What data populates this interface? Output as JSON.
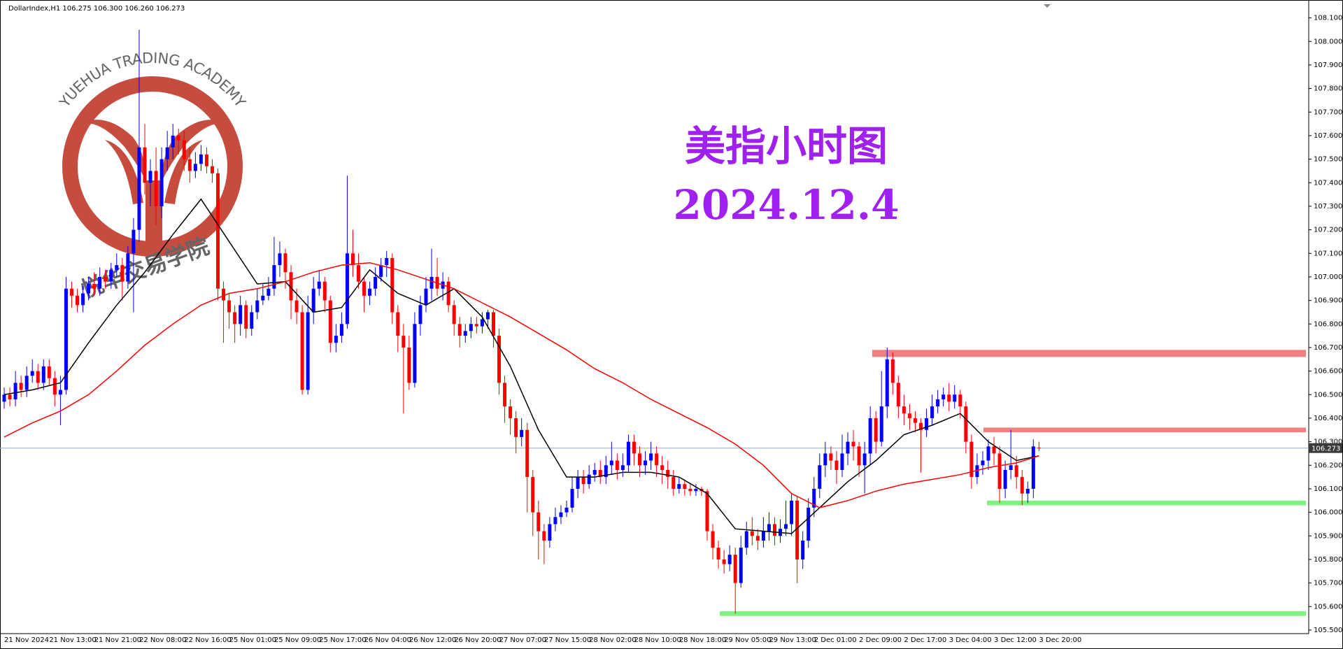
{
  "chart_data": {
    "type": "candlestick",
    "header": "DollarIndex,H1  106.275 106.300 106.260 106.273",
    "title": "美指小时图",
    "subtitle": "2024.12.4",
    "logo_text": "YUEHUA TRADING ACADEMY",
    "logo_text_cn": "悦华交易学院",
    "up_color": "#0000ff",
    "down_color": "#ff0000",
    "ylim": [
      105.485,
      108.176
    ],
    "yticks": [
      {
        "value": 105.5,
        "label": "105.500"
      },
      {
        "value": 105.6,
        "label": "105.600"
      },
      {
        "value": 105.7,
        "label": "105.700"
      },
      {
        "value": 105.8,
        "label": "105.800"
      },
      {
        "value": 105.9,
        "label": "105.900"
      },
      {
        "value": 106.0,
        "label": "106.000"
      },
      {
        "value": 106.1,
        "label": "106.100"
      },
      {
        "value": 106.2,
        "label": "106.200"
      },
      {
        "value": 106.3,
        "label": "106.300"
      },
      {
        "value": 106.4,
        "label": "106.400"
      },
      {
        "value": 106.5,
        "label": "106.500"
      },
      {
        "value": 106.6,
        "label": "106.600"
      },
      {
        "value": 106.7,
        "label": "106.700"
      },
      {
        "value": 106.8,
        "label": "106.800"
      },
      {
        "value": 106.9,
        "label": "106.900"
      },
      {
        "value": 107.0,
        "label": "107.000"
      },
      {
        "value": 107.1,
        "label": "107.100"
      },
      {
        "value": 107.2,
        "label": "107.200"
      },
      {
        "value": 107.3,
        "label": "107.300"
      },
      {
        "value": 107.4,
        "label": "107.400"
      },
      {
        "value": 107.5,
        "label": "107.500"
      },
      {
        "value": 107.6,
        "label": "107.600"
      },
      {
        "value": 107.7,
        "label": "107.700"
      },
      {
        "value": 107.8,
        "label": "107.800"
      },
      {
        "value": 107.9,
        "label": "107.900"
      },
      {
        "value": 108.0,
        "label": "108.000"
      },
      {
        "value": 108.1,
        "label": "108.100"
      }
    ],
    "price_line": 106.273,
    "price_line_color": "#9aa8bd",
    "categories": [
      "21 Nov 2024",
      null,
      null,
      null,
      null,
      null,
      null,
      null,
      "21 Nov 13:00",
      null,
      null,
      null,
      null,
      null,
      null,
      null,
      "21 Nov 21:00",
      null,
      null,
      null,
      null,
      null,
      null,
      null,
      "22 Nov 08:00",
      null,
      null,
      null,
      null,
      null,
      null,
      null,
      "22 Nov 16:00",
      null,
      null,
      null,
      null,
      null,
      null,
      null,
      "25 Nov 01:00",
      null,
      null,
      null,
      null,
      null,
      null,
      null,
      "25 Nov 09:00",
      null,
      null,
      null,
      null,
      null,
      null,
      null,
      "25 Nov 17:00",
      null,
      null,
      null,
      null,
      null,
      null,
      null,
      "26 Nov 04:00",
      null,
      null,
      null,
      null,
      null,
      null,
      null,
      "26 Nov 12:00",
      null,
      null,
      null,
      null,
      null,
      null,
      null,
      "26 Nov 20:00",
      null,
      null,
      null,
      null,
      null,
      null,
      null,
      "27 Nov 07:00",
      null,
      null,
      null,
      null,
      null,
      null,
      null,
      "27 Nov 15:00",
      null,
      null,
      null,
      null,
      null,
      null,
      null,
      "28 Nov 02:00",
      null,
      null,
      null,
      null,
      null,
      null,
      null,
      "28 Nov 10:00",
      null,
      null,
      null,
      null,
      null,
      null,
      null,
      "28 Nov 18:00",
      null,
      null,
      null,
      null,
      null,
      null,
      null,
      "29 Nov 05:00",
      null,
      null,
      null,
      null,
      null,
      null,
      null,
      "29 Nov 13:00",
      null,
      null,
      null,
      null,
      null,
      null,
      null,
      "2 Dec 01:00",
      null,
      null,
      null,
      null,
      null,
      null,
      null,
      "2 Dec 09:00",
      null,
      null,
      null,
      null,
      null,
      null,
      null,
      "2 Dec 17:00",
      null,
      null,
      null,
      null,
      null,
      null,
      null,
      "3 Dec 04:00",
      null,
      null,
      null,
      null,
      null,
      null,
      null,
      "3 Dec 12:00",
      null,
      null,
      null,
      null,
      null,
      null,
      null,
      "3 Dec 20:00"
    ],
    "open": [
      106.47,
      106.5,
      106.48,
      106.55,
      106.52,
      106.58,
      106.6,
      106.55,
      106.62,
      106.57,
      106.5,
      106.52,
      106.95,
      106.92,
      106.88,
      106.93,
      106.97,
      106.95,
      107.0,
      106.98,
      107.03,
      107.05,
      106.98,
      107.1,
      107.2,
      107.55,
      107.4,
      107.45,
      107.3,
      107.5,
      107.55,
      107.6,
      107.58,
      107.5,
      107.45,
      107.48,
      107.52,
      107.47,
      107.44,
      106.95,
      106.9,
      106.85,
      106.8,
      106.88,
      106.78,
      106.85,
      106.9,
      106.92,
      106.95,
      107.05,
      107.1,
      107.02,
      106.9,
      106.85,
      106.52,
      106.85,
      106.95,
      106.98,
      106.9,
      106.72,
      106.75,
      106.8,
      107.1,
      107.05,
      106.98,
      106.92,
      106.95,
      107.0,
      107.05,
      107.08,
      106.85,
      106.75,
      106.7,
      106.55,
      106.8,
      106.88,
      106.95,
      107.0,
      106.95,
      106.98,
      106.88,
      106.8,
      106.75,
      106.77,
      106.8,
      106.79,
      106.82,
      106.85,
      106.75,
      106.55,
      106.45,
      106.4,
      106.32,
      106.35,
      106.15,
      106.0,
      105.92,
      105.88,
      105.95,
      105.98,
      106.0,
      106.02,
      106.1,
      106.15,
      106.12,
      106.16,
      106.18,
      106.15,
      106.2,
      106.22,
      106.18,
      106.2,
      106.3,
      106.25,
      106.2,
      106.22,
      106.25,
      106.2,
      106.18,
      106.15,
      106.1,
      106.12,
      106.1,
      106.09,
      106.1,
      106.09,
      105.92,
      105.85,
      105.8,
      105.78,
      105.82,
      105.7,
      105.85,
      105.92,
      105.9,
      105.88,
      105.92,
      105.95,
      105.9,
      105.93,
      105.95,
      106.05,
      105.8,
      105.88,
      106.02,
      106.1,
      106.2,
      106.25,
      106.22,
      106.18,
      106.25,
      106.3,
      106.28,
      106.2,
      106.25,
      106.4,
      106.3,
      106.45,
      106.65,
      106.55,
      106.45,
      106.42,
      106.4,
      106.38,
      106.35,
      106.4,
      106.45,
      106.48,
      106.5,
      106.47,
      106.5,
      106.45,
      106.3,
      106.15,
      106.2,
      106.22,
      106.28,
      106.25,
      106.1,
      106.18,
      106.2,
      106.15,
      106.08,
      106.1,
      106.275
    ],
    "high": [
      106.53,
      106.53,
      106.6,
      106.58,
      106.62,
      106.65,
      106.63,
      106.65,
      106.65,
      106.6,
      106.58,
      107.0,
      106.98,
      106.95,
      106.96,
      107.0,
      107.02,
      107.04,
      107.03,
      107.06,
      107.1,
      107.08,
      107.13,
      107.25,
      108.05,
      107.65,
      107.5,
      107.55,
      107.55,
      107.62,
      107.65,
      107.63,
      107.62,
      107.55,
      107.53,
      107.56,
      107.55,
      107.5,
      107.46,
      106.98,
      106.93,
      106.88,
      106.92,
      106.9,
      106.88,
      106.95,
      106.97,
      107.0,
      107.17,
      107.15,
      107.12,
      107.05,
      106.95,
      106.88,
      106.92,
      107.0,
      107.03,
      107.0,
      106.92,
      106.8,
      106.85,
      107.43,
      107.2,
      107.1,
      107.0,
      106.98,
      107.04,
      107.08,
      107.11,
      107.1,
      106.88,
      106.8,
      106.75,
      106.85,
      106.92,
      107.0,
      107.12,
      107.08,
      107.02,
      107.0,
      106.9,
      106.83,
      106.8,
      106.83,
      106.83,
      106.85,
      106.86,
      106.86,
      106.78,
      106.58,
      106.48,
      106.43,
      106.4,
      106.38,
      106.18,
      106.05,
      105.95,
      105.98,
      106.02,
      106.03,
      106.05,
      106.15,
      106.18,
      106.18,
      106.2,
      106.21,
      106.22,
      106.24,
      106.3,
      106.25,
      106.25,
      106.33,
      106.33,
      106.28,
      106.26,
      106.3,
      106.28,
      106.24,
      106.22,
      106.18,
      106.15,
      106.14,
      106.12,
      106.12,
      106.11,
      106.1,
      105.95,
      105.88,
      105.84,
      105.86,
      105.85,
      105.9,
      105.96,
      105.98,
      105.93,
      105.98,
      106.0,
      105.98,
      105.97,
      106.05,
      106.08,
      106.07,
      105.92,
      106.06,
      106.15,
      106.25,
      106.3,
      106.28,
      106.26,
      106.33,
      106.34,
      106.35,
      106.3,
      106.3,
      106.45,
      106.43,
      106.6,
      106.7,
      106.68,
      106.58,
      106.5,
      106.46,
      106.43,
      106.4,
      106.44,
      106.5,
      106.52,
      106.53,
      106.55,
      106.54,
      106.52,
      106.47,
      106.33,
      106.25,
      106.26,
      106.31,
      106.32,
      106.28,
      106.22,
      106.35,
      106.24,
      106.18,
      106.13,
      106.31,
      106.3
    ],
    "low": [
      106.44,
      106.45,
      106.45,
      106.49,
      106.49,
      106.55,
      106.52,
      106.52,
      106.54,
      106.45,
      106.37,
      106.5,
      106.87,
      106.85,
      106.85,
      106.9,
      106.92,
      106.92,
      106.95,
      106.95,
      107.0,
      106.9,
      106.95,
      106.85,
      107.15,
      107.35,
      107.3,
      107.22,
      107.25,
      107.45,
      107.5,
      107.52,
      107.45,
      107.4,
      107.42,
      107.45,
      107.44,
      107.4,
      106.9,
      106.72,
      106.78,
      106.72,
      106.75,
      106.74,
      106.75,
      106.82,
      106.88,
      106.9,
      106.92,
      107.0,
      106.95,
      106.82,
      106.8,
      106.5,
      106.5,
      106.8,
      106.92,
      106.85,
      106.68,
      106.68,
      106.72,
      106.78,
      107.0,
      106.95,
      106.85,
      106.88,
      106.92,
      106.98,
      107.0,
      106.8,
      106.68,
      106.42,
      106.52,
      106.53,
      106.75,
      106.85,
      106.9,
      106.92,
      106.9,
      106.85,
      106.75,
      106.7,
      106.72,
      106.74,
      106.76,
      106.76,
      106.78,
      106.7,
      106.5,
      106.38,
      106.33,
      106.25,
      106.28,
      106.0,
      105.9,
      105.8,
      105.78,
      105.85,
      105.92,
      105.95,
      105.98,
      106.0,
      106.06,
      106.08,
      106.1,
      106.13,
      106.12,
      106.12,
      106.16,
      106.14,
      106.15,
      106.17,
      106.2,
      106.15,
      106.16,
      106.18,
      106.15,
      106.12,
      106.1,
      106.07,
      106.08,
      106.07,
      106.07,
      106.07,
      106.07,
      105.88,
      105.8,
      105.76,
      105.74,
      105.75,
      105.57,
      105.68,
      105.82,
      105.86,
      105.84,
      105.85,
      105.88,
      105.86,
      105.87,
      105.9,
      105.9,
      105.7,
      105.76,
      105.85,
      105.98,
      106.06,
      106.15,
      106.18,
      106.12,
      106.15,
      106.2,
      106.22,
      106.15,
      106.08,
      106.2,
      106.25,
      106.28,
      106.4,
      106.5,
      106.4,
      106.37,
      106.35,
      106.34,
      106.17,
      106.32,
      106.37,
      106.42,
      106.45,
      106.43,
      106.44,
      106.4,
      106.25,
      106.1,
      106.12,
      106.16,
      106.18,
      106.2,
      106.04,
      106.06,
      106.14,
      106.1,
      106.03,
      106.04,
      106.06,
      106.26
    ],
    "close": [
      106.5,
      106.48,
      106.55,
      106.52,
      106.58,
      106.6,
      106.55,
      106.62,
      106.57,
      106.5,
      106.52,
      106.95,
      106.92,
      106.88,
      106.93,
      106.97,
      106.95,
      107.0,
      106.98,
      107.03,
      107.05,
      106.98,
      107.1,
      107.2,
      107.55,
      107.4,
      107.45,
      107.3,
      107.5,
      107.55,
      107.6,
      107.58,
      107.5,
      107.45,
      107.48,
      107.52,
      107.47,
      107.44,
      106.95,
      106.9,
      106.85,
      106.8,
      106.88,
      106.78,
      106.85,
      106.9,
      106.92,
      106.95,
      107.05,
      107.1,
      107.02,
      106.9,
      106.85,
      106.52,
      106.85,
      106.95,
      106.98,
      106.9,
      106.72,
      106.75,
      106.8,
      107.1,
      107.05,
      106.98,
      106.92,
      106.95,
      107.0,
      107.05,
      107.08,
      106.85,
      106.75,
      106.7,
      106.55,
      106.8,
      106.88,
      106.95,
      107.0,
      106.95,
      106.98,
      106.88,
      106.8,
      106.75,
      106.77,
      106.8,
      106.79,
      106.82,
      106.85,
      106.75,
      106.55,
      106.45,
      106.4,
      106.32,
      106.35,
      106.15,
      106.0,
      105.92,
      105.88,
      105.95,
      105.98,
      106.0,
      106.02,
      106.1,
      106.15,
      106.12,
      106.16,
      106.18,
      106.15,
      106.2,
      106.22,
      106.18,
      106.2,
      106.3,
      106.25,
      106.2,
      106.22,
      106.25,
      106.2,
      106.18,
      106.15,
      106.1,
      106.12,
      106.1,
      106.09,
      106.1,
      106.09,
      105.92,
      105.85,
      105.8,
      105.78,
      105.82,
      105.7,
      105.85,
      105.92,
      105.9,
      105.88,
      105.92,
      105.95,
      105.9,
      105.93,
      105.95,
      106.05,
      105.8,
      105.88,
      106.02,
      106.1,
      106.2,
      106.25,
      106.22,
      106.18,
      106.25,
      106.3,
      106.28,
      106.2,
      106.25,
      106.4,
      106.3,
      106.45,
      106.65,
      106.55,
      106.45,
      106.42,
      106.4,
      106.38,
      106.35,
      106.4,
      106.45,
      106.48,
      106.5,
      106.47,
      106.5,
      106.45,
      106.3,
      106.15,
      106.2,
      106.22,
      106.28,
      106.25,
      106.1,
      106.18,
      106.2,
      106.15,
      106.08,
      106.1,
      106.28,
      106.273
    ],
    "series": [
      {
        "color": "#000000",
        "x": [
          0,
          5,
          10,
          15,
          20,
          25,
          30,
          35,
          40,
          45,
          50,
          55,
          60,
          65,
          70,
          75,
          80,
          85,
          90,
          95,
          100,
          105,
          110,
          115,
          120,
          125,
          130,
          135,
          140,
          145,
          150,
          155,
          160,
          165,
          170,
          175,
          180,
          184
        ],
        "values": [
          106.5,
          106.52,
          106.55,
          106.72,
          106.88,
          107.02,
          107.18,
          107.33,
          107.15,
          106.97,
          106.98,
          106.85,
          106.87,
          107.03,
          106.93,
          106.88,
          106.95,
          106.83,
          106.62,
          106.35,
          106.15,
          106.15,
          106.17,
          106.17,
          106.15,
          106.08,
          105.93,
          105.92,
          105.91,
          106.02,
          106.13,
          106.22,
          106.33,
          106.37,
          106.42,
          106.3,
          106.22,
          106.24
        ]
      },
      {
        "color": "#ff0000",
        "x": [
          0,
          5,
          10,
          15,
          20,
          25,
          30,
          35,
          40,
          45,
          50,
          55,
          60,
          65,
          70,
          75,
          80,
          85,
          90,
          95,
          100,
          105,
          110,
          115,
          120,
          125,
          130,
          135,
          140,
          145,
          150,
          155,
          160,
          165,
          170,
          175,
          180,
          184
        ],
        "values": [
          106.32,
          106.38,
          106.43,
          106.5,
          106.6,
          106.71,
          106.8,
          106.88,
          106.93,
          106.95,
          106.98,
          107.02,
          107.05,
          107.06,
          107.03,
          106.99,
          106.95,
          106.89,
          106.83,
          106.76,
          106.69,
          106.61,
          106.55,
          106.48,
          106.42,
          106.36,
          106.29,
          106.2,
          106.08,
          106.02,
          106.05,
          106.09,
          106.12,
          106.14,
          106.16,
          106.19,
          106.21,
          106.24
        ]
      }
    ],
    "zones": [
      {
        "low": 106.66,
        "high": 106.69,
        "color": "#f08080"
      },
      {
        "low": 106.34,
        "high": 106.36,
        "color": "#f08080"
      },
      {
        "low": 106.03,
        "high": 106.05,
        "color": "#80f080"
      },
      {
        "low": 105.56,
        "high": 105.58,
        "color": "#80f080"
      }
    ],
    "title_color": "#a020f0"
  }
}
